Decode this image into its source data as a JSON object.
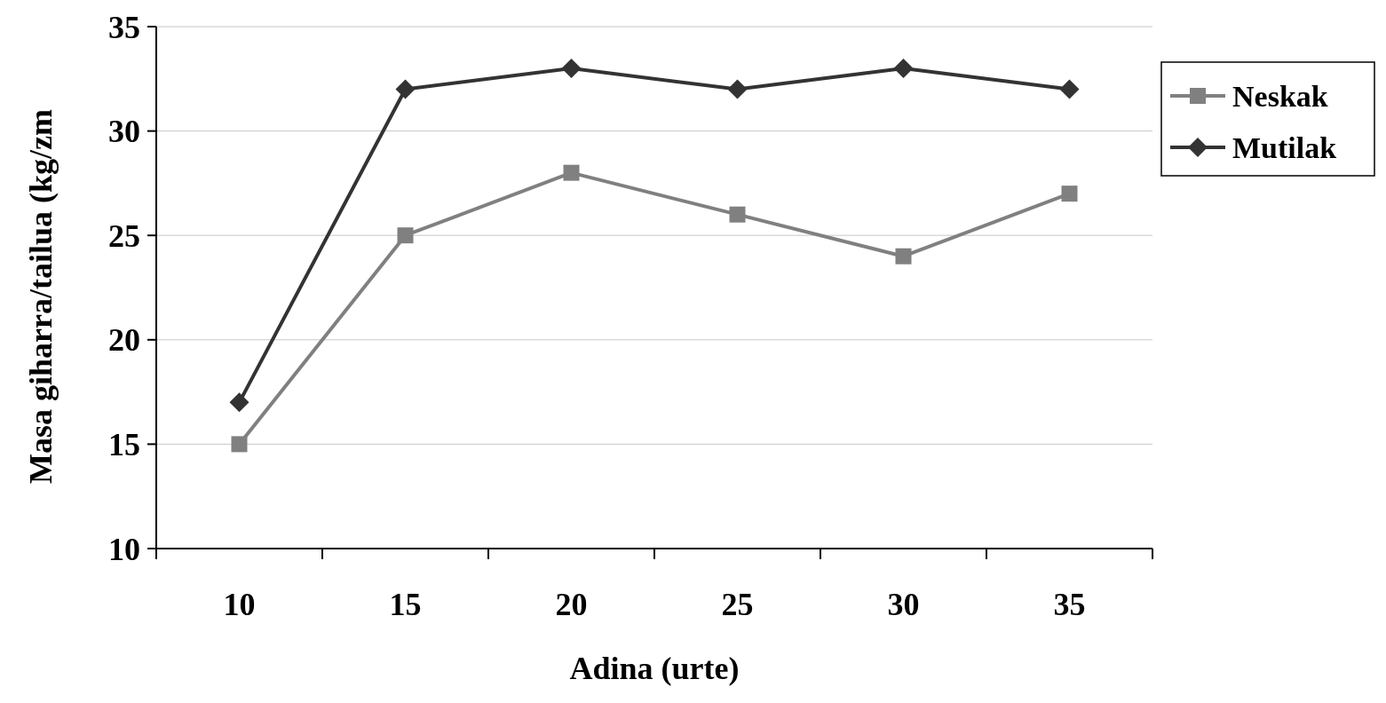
{
  "chart_data": {
    "type": "line",
    "xlabel": "Adina (urte)",
    "ylabel": "Masa giharra/tailua (kg/zm",
    "categories": [
      "10",
      "15",
      "20",
      "25",
      "30",
      "35"
    ],
    "ylim": [
      10,
      35
    ],
    "yticks": [
      10,
      15,
      20,
      25,
      30,
      35
    ],
    "grid": "y",
    "legend": "right",
    "line_style": "solid",
    "series": [
      {
        "name": "Neskak",
        "color": "#808080",
        "marker": "square",
        "values": [
          15,
          25,
          28,
          26,
          24,
          27
        ]
      },
      {
        "name": "Mutilak",
        "color": "#333333",
        "marker": "diamond",
        "values": [
          17,
          32,
          33,
          32,
          33,
          32
        ]
      }
    ]
  }
}
